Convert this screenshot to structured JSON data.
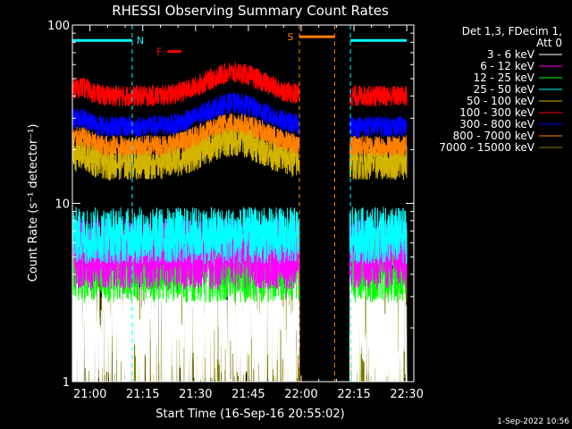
{
  "chart_data": {
    "type": "line",
    "title": "RHESSI Observing Summary Count Rates",
    "xlabel": "Start Time (16-Sep-16 20:55:02)",
    "ylabel": "Count Rate (s⁻¹ detector⁻¹)",
    "yscale": "log",
    "ylim": [
      1,
      100
    ],
    "xlim_minutes": [
      0,
      97
    ],
    "x_ticks": [
      "21:00",
      "21:15",
      "21:30",
      "21:45",
      "22:00",
      "22:15",
      "22:30"
    ],
    "x_tick_minutes": [
      5,
      20,
      35,
      50,
      65,
      80,
      95
    ],
    "y_ticks": [
      "1",
      "10",
      "100"
    ],
    "y_tick_values": [
      1,
      10,
      100
    ],
    "legend_title": "Det 1,3, FDecim 1,\nAtt 0",
    "legend_position": "right",
    "gap_minutes": [
      64.5,
      78.8
    ],
    "series": [
      {
        "name": "3 - 6 keV",
        "color": "#ffffff",
        "base": 2.0,
        "noise": 0.55
      },
      {
        "name": "6 - 12 keV",
        "color": "#ff00ff",
        "base": 5.2,
        "noise": 0.2
      },
      {
        "name": "12 - 25 keV",
        "color": "#00ff00",
        "base": 4.6,
        "noise": 0.22
      },
      {
        "name": "25 - 50 keV",
        "color": "#00ffff",
        "base": 6.6,
        "noise": 0.16
      },
      {
        "name": "50 - 100 keV",
        "color": "#d2b400",
        "base": 17,
        "noise": 0.1
      },
      {
        "name": "100 - 300 keV",
        "color": "#ff0000",
        "base": 40,
        "noise": 0.06
      },
      {
        "name": "300 - 800 keV",
        "color": "#0000ff",
        "base": 27,
        "noise": 0.06
      },
      {
        "name": "800 - 7000 keV",
        "color": "#ff8000",
        "base": 21,
        "noise": 0.06
      },
      {
        "name": "7000 - 15000 keV",
        "color": "#808000",
        "base": 1.6,
        "noise": 0.5
      }
    ],
    "flags": [
      {
        "label": "N",
        "color": "#00ffff",
        "segments": [
          [
            0,
            17
          ],
          [
            79,
            95
          ]
        ]
      },
      {
        "label": "S",
        "color": "#ff8000",
        "segments": [
          [
            64.5,
            74.5
          ]
        ]
      },
      {
        "label": "F",
        "color": "#ff0000",
        "segments": [
          [
            27,
            31
          ]
        ]
      }
    ]
  },
  "timestamp": "1-Sep-2022 10:56"
}
